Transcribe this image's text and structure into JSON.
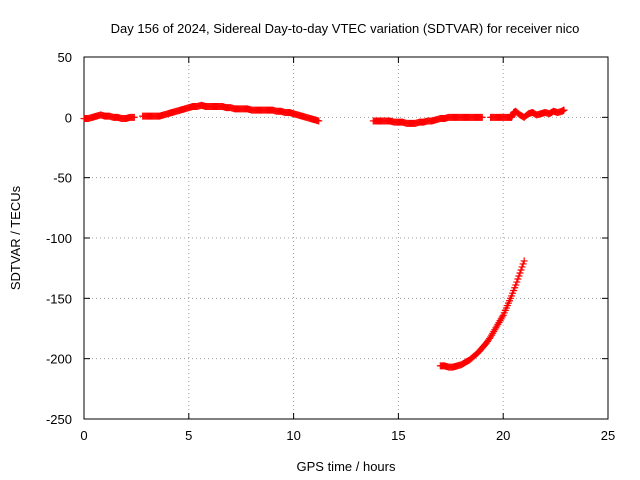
{
  "chart_data": {
    "type": "scatter",
    "title": "Day 156 of 2024, Sidereal Day-to-day VTEC variation (SDTVAR) for receiver nico",
    "xlabel": "GPS time / hours",
    "ylabel": "SDTVAR / TECUs",
    "xlim": [
      0,
      25
    ],
    "ylim": [
      -250,
      50
    ],
    "xticks": [
      0,
      5,
      10,
      15,
      20,
      25
    ],
    "yticks": [
      50,
      0,
      -50,
      -100,
      -150,
      -200,
      -250
    ],
    "xtick_labels": [
      "0",
      "5",
      "10",
      "15",
      "20",
      "25"
    ],
    "ytick_labels": [
      "50",
      "0",
      "-50",
      "-100",
      "-150",
      "-200",
      "-250"
    ],
    "grid": true,
    "marker": "plus",
    "color": "#ff0000",
    "series": [
      {
        "name": "segment-1",
        "points": [
          [
            0.0,
            -1
          ],
          [
            0.2,
            -1
          ],
          [
            0.4,
            0
          ],
          [
            0.6,
            1
          ],
          [
            0.8,
            2
          ],
          [
            1.0,
            1
          ],
          [
            1.2,
            1
          ],
          [
            1.4,
            0
          ],
          [
            1.6,
            0
          ],
          [
            1.8,
            -1
          ],
          [
            2.0,
            -1
          ],
          [
            2.2,
            0
          ],
          [
            2.4,
            0
          ]
        ]
      },
      {
        "name": "segment-2",
        "points": [
          [
            2.8,
            1
          ],
          [
            3.0,
            1
          ],
          [
            3.2,
            1
          ],
          [
            3.4,
            1
          ],
          [
            3.6,
            1
          ],
          [
            3.8,
            2
          ],
          [
            4.0,
            3
          ],
          [
            4.2,
            4
          ],
          [
            4.4,
            5
          ],
          [
            4.6,
            6
          ],
          [
            4.8,
            7
          ],
          [
            5.0,
            8
          ],
          [
            5.2,
            9
          ],
          [
            5.4,
            9
          ],
          [
            5.6,
            10
          ],
          [
            5.8,
            9
          ],
          [
            6.0,
            9
          ],
          [
            6.2,
            9
          ],
          [
            6.4,
            9
          ],
          [
            6.6,
            9
          ],
          [
            6.8,
            8
          ],
          [
            7.0,
            8
          ],
          [
            7.2,
            7
          ],
          [
            7.4,
            7
          ],
          [
            7.6,
            7
          ],
          [
            7.8,
            7
          ],
          [
            8.0,
            6
          ],
          [
            8.2,
            6
          ],
          [
            8.4,
            6
          ],
          [
            8.6,
            6
          ],
          [
            8.8,
            6
          ],
          [
            9.0,
            6
          ],
          [
            9.2,
            5
          ],
          [
            9.4,
            5
          ],
          [
            9.6,
            4
          ],
          [
            9.8,
            4
          ],
          [
            10.0,
            3
          ],
          [
            10.2,
            2
          ],
          [
            10.4,
            1
          ],
          [
            10.6,
            0
          ],
          [
            10.8,
            -1
          ],
          [
            11.0,
            -2
          ],
          [
            11.2,
            -3
          ]
        ]
      },
      {
        "name": "segment-3",
        "points": [
          [
            13.8,
            -3
          ],
          [
            14.0,
            -3
          ],
          [
            14.2,
            -3
          ],
          [
            14.4,
            -3
          ],
          [
            14.6,
            -3
          ],
          [
            14.8,
            -4
          ],
          [
            15.0,
            -4
          ],
          [
            15.2,
            -4
          ],
          [
            15.4,
            -5
          ],
          [
            15.6,
            -5
          ],
          [
            15.8,
            -5
          ],
          [
            16.0,
            -4
          ],
          [
            16.2,
            -4
          ],
          [
            16.4,
            -3
          ],
          [
            16.6,
            -3
          ],
          [
            16.8,
            -2
          ],
          [
            17.0,
            -1
          ],
          [
            17.2,
            -1
          ],
          [
            17.4,
            0
          ],
          [
            17.6,
            0
          ],
          [
            17.8,
            0
          ],
          [
            18.0,
            0
          ],
          [
            18.2,
            0
          ],
          [
            18.4,
            0
          ],
          [
            18.6,
            0
          ],
          [
            18.8,
            0
          ],
          [
            19.0,
            0
          ]
        ]
      },
      {
        "name": "segment-4",
        "points": [
          [
            19.4,
            0
          ],
          [
            19.6,
            0
          ],
          [
            19.8,
            0
          ],
          [
            20.0,
            0
          ],
          [
            20.2,
            0
          ],
          [
            20.4,
            0
          ],
          [
            20.5,
            4
          ],
          [
            20.6,
            5
          ],
          [
            20.8,
            2
          ],
          [
            21.0,
            0
          ],
          [
            21.2,
            3
          ],
          [
            21.4,
            4
          ],
          [
            21.6,
            2
          ],
          [
            21.8,
            3
          ],
          [
            22.0,
            4
          ],
          [
            22.2,
            3
          ],
          [
            22.4,
            5
          ],
          [
            22.6,
            4
          ],
          [
            22.8,
            5
          ],
          [
            22.9,
            6
          ]
        ]
      },
      {
        "name": "segment-5",
        "points": [
          [
            17.0,
            -206
          ],
          [
            17.2,
            -206
          ],
          [
            17.4,
            -207
          ],
          [
            17.6,
            -207
          ],
          [
            17.8,
            -206
          ],
          [
            18.0,
            -205
          ],
          [
            18.2,
            -203
          ],
          [
            18.4,
            -201
          ],
          [
            18.6,
            -198
          ],
          [
            18.8,
            -195
          ],
          [
            19.0,
            -191
          ],
          [
            19.2,
            -187
          ],
          [
            19.4,
            -182
          ],
          [
            19.6,
            -176
          ],
          [
            19.8,
            -170
          ],
          [
            20.0,
            -164
          ],
          [
            20.2,
            -156
          ],
          [
            20.4,
            -148
          ],
          [
            20.6,
            -139
          ],
          [
            20.8,
            -129
          ],
          [
            21.0,
            -119
          ]
        ]
      }
    ]
  }
}
